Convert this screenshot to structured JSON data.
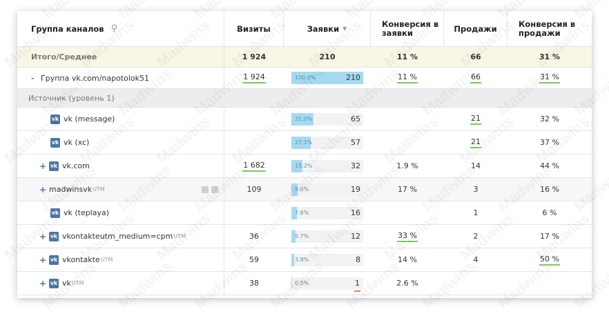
{
  "header": {
    "group_label": "Группа каналов",
    "visits": "Визиты",
    "requests": "Заявки",
    "sort_arrow": "▼",
    "conv_req_line1": "Конверсия в",
    "conv_req_line2": "заявки",
    "sales": "Продажи",
    "conv_sales_line1": "Конверсия в",
    "conv_sales_line2": "продажи"
  },
  "total": {
    "label": "Итого/Среднее",
    "visits": "1 924",
    "requests": "210",
    "conv_req": "11 %",
    "sales": "66",
    "conv_sales": "31 %"
  },
  "group_row": {
    "toggle": "-",
    "label": "Группа vk.com/napotolok51",
    "visits": "1 924",
    "bar_pct": "100.0%",
    "bar_fill": 1.0,
    "requests": "210",
    "conv_req": "11 %",
    "sales": "66",
    "conv_sales": "31 %"
  },
  "source_header": {
    "label": "Источник (уровень 1)"
  },
  "rows": [
    {
      "toggle": "",
      "icon": "vk-icon",
      "label": "vk (message)",
      "utm": "",
      "visits": "",
      "bar_pct": "31.0%",
      "bar_fill": 0.31,
      "requests": "65",
      "conv_req": "",
      "sales": "21",
      "conv_sales": "32 %"
    },
    {
      "toggle": "",
      "icon": "vk-icon",
      "label": "vk (xc)",
      "utm": "",
      "visits": "",
      "bar_pct": "27.1%",
      "bar_fill": 0.271,
      "requests": "57",
      "conv_req": "",
      "sales": "21",
      "conv_sales": "37 %"
    },
    {
      "toggle": "+",
      "icon": "vk-icon",
      "label": "vk.com",
      "utm": "",
      "visits": "1 682",
      "bar_pct": "15.2%",
      "bar_fill": 0.152,
      "requests": "32",
      "conv_req": "1.9 %",
      "sales": "14",
      "conv_sales": "44 %"
    },
    {
      "toggle": "+",
      "icon": "",
      "label": "madwinsvk",
      "utm": "UTM",
      "visits": "109",
      "bar_pct": "9.0%",
      "bar_fill": 0.09,
      "requests": "19",
      "conv_req": "17 %",
      "sales": "3",
      "conv_sales": "16 %"
    },
    {
      "toggle": "",
      "icon": "vk-icon",
      "label": "vk (teplaya)",
      "utm": "",
      "visits": "",
      "bar_pct": "7.6%",
      "bar_fill": 0.076,
      "requests": "16",
      "conv_req": "",
      "sales": "1",
      "conv_sales": "6 %"
    },
    {
      "toggle": "+",
      "icon": "vk-icon",
      "label": "vkontakteutm_medium=cpm",
      "utm": "UTM",
      "visits": "36",
      "bar_pct": "5.7%",
      "bar_fill": 0.057,
      "requests": "12",
      "conv_req": "33 %",
      "sales": "2",
      "conv_sales": "17 %"
    },
    {
      "toggle": "+",
      "icon": "vk-icon",
      "label": "vkontakte",
      "utm": "UTM",
      "visits": "59",
      "bar_pct": "3.8%",
      "bar_fill": 0.038,
      "requests": "8",
      "conv_req": "14 %",
      "sales": "4",
      "conv_sales": "50 %"
    },
    {
      "toggle": "+",
      "icon": "vk-icon",
      "label": "vk",
      "utm": "UTM",
      "visits": "38",
      "bar_pct": "0.5%",
      "bar_fill": 0.005,
      "requests": "1",
      "conv_req": "2.6 %",
      "sales": "",
      "conv_sales": ""
    }
  ],
  "watermark": "Madwins",
  "colors": {
    "bar": "#a6daf0",
    "vk_brand": "#4c75a3",
    "total_bg": "#f9f6e6",
    "underline_green": "#7ccc5a"
  }
}
